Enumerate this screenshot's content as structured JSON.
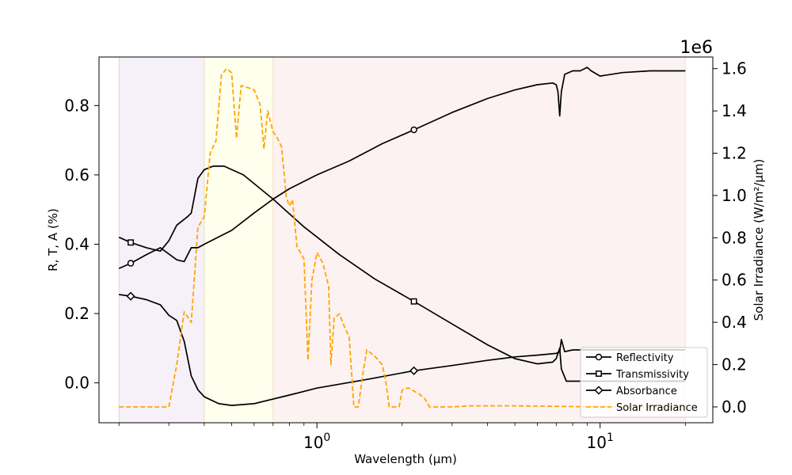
{
  "chart_data": {
    "type": "line",
    "xlabel": "Wavelength (μm)",
    "ylabel_left": "R, T, A (%)",
    "ylabel_right": "Solar Irradiance (W/m²/μm)",
    "right_axis_offset": "1e6",
    "x_scale": "log",
    "xlim": [
      0.17,
      25
    ],
    "x_major_ticks": [
      {
        "value": 1,
        "base": "10",
        "exp": "0"
      },
      {
        "value": 10,
        "base": "10",
        "exp": "1"
      }
    ],
    "ylim_left": [
      -0.115,
      0.94
    ],
    "yticks_left": [
      "0.0",
      "0.2",
      "0.4",
      "0.6",
      "0.8"
    ],
    "ylim_right": [
      -0.075,
      1.655
    ],
    "yticks_right": [
      "0.0",
      "0.2",
      "0.4",
      "0.6",
      "0.8",
      "1.0",
      "1.2",
      "1.4",
      "1.6"
    ],
    "bands": [
      {
        "x0": 0.2,
        "x1": 0.4,
        "color": "#9b59b6",
        "opacity": 0.09
      },
      {
        "x0": 0.4,
        "x1": 0.7,
        "color": "#ffff66",
        "opacity": 0.11
      },
      {
        "x0": 0.7,
        "x1": 20,
        "color": "#f08080",
        "opacity": 0.1
      }
    ],
    "legend_position": "lower-right",
    "series": [
      {
        "name": "Reflectivity",
        "axis": "left",
        "color": "#000000",
        "dash": "solid",
        "marker": "circle",
        "marker_x": [
          0.22,
          2.2
        ],
        "points": [
          [
            0.2,
            0.33
          ],
          [
            0.22,
            0.345
          ],
          [
            0.25,
            0.37
          ],
          [
            0.28,
            0.39
          ],
          [
            0.32,
            0.355
          ],
          [
            0.34,
            0.35
          ],
          [
            0.36,
            0.39
          ],
          [
            0.38,
            0.39
          ],
          [
            0.4,
            0.4
          ],
          [
            0.5,
            0.44
          ],
          [
            0.6,
            0.49
          ],
          [
            0.7,
            0.53
          ],
          [
            0.8,
            0.56
          ],
          [
            1.0,
            0.6
          ],
          [
            1.3,
            0.64
          ],
          [
            1.7,
            0.69
          ],
          [
            2.2,
            0.73
          ],
          [
            3.0,
            0.78
          ],
          [
            4.0,
            0.82
          ],
          [
            5.0,
            0.845
          ],
          [
            6.0,
            0.86
          ],
          [
            6.8,
            0.865
          ],
          [
            7.0,
            0.86
          ],
          [
            7.1,
            0.84
          ],
          [
            7.2,
            0.77
          ],
          [
            7.3,
            0.84
          ],
          [
            7.5,
            0.89
          ],
          [
            8.0,
            0.9
          ],
          [
            8.5,
            0.9
          ],
          [
            9.0,
            0.91
          ],
          [
            9.3,
            0.9
          ],
          [
            10,
            0.885
          ],
          [
            12,
            0.895
          ],
          [
            15,
            0.9
          ],
          [
            20,
            0.9
          ]
        ]
      },
      {
        "name": "Transmissivity",
        "axis": "left",
        "color": "#000000",
        "dash": "solid",
        "marker": "square",
        "marker_x": [
          0.22,
          2.2
        ],
        "points": [
          [
            0.2,
            0.42
          ],
          [
            0.22,
            0.405
          ],
          [
            0.25,
            0.39
          ],
          [
            0.28,
            0.38
          ],
          [
            0.3,
            0.41
          ],
          [
            0.32,
            0.455
          ],
          [
            0.35,
            0.48
          ],
          [
            0.36,
            0.49
          ],
          [
            0.38,
            0.59
          ],
          [
            0.4,
            0.615
          ],
          [
            0.43,
            0.625
          ],
          [
            0.47,
            0.625
          ],
          [
            0.55,
            0.6
          ],
          [
            0.7,
            0.53
          ],
          [
            0.9,
            0.45
          ],
          [
            1.2,
            0.37
          ],
          [
            1.6,
            0.3
          ],
          [
            2.2,
            0.235
          ],
          [
            3.0,
            0.17
          ],
          [
            4.0,
            0.11
          ],
          [
            5.0,
            0.07
          ],
          [
            6.0,
            0.055
          ],
          [
            6.8,
            0.06
          ],
          [
            7.0,
            0.07
          ],
          [
            7.2,
            0.1
          ],
          [
            7.3,
            0.04
          ],
          [
            7.6,
            0.005
          ],
          [
            9,
            0.005
          ],
          [
            20,
            0.005
          ]
        ]
      },
      {
        "name": "Absorbance",
        "axis": "left",
        "color": "#000000",
        "dash": "solid",
        "marker": "diamond",
        "marker_x": [
          0.22,
          2.2
        ],
        "points": [
          [
            0.2,
            0.255
          ],
          [
            0.22,
            0.25
          ],
          [
            0.25,
            0.24
          ],
          [
            0.28,
            0.225
          ],
          [
            0.3,
            0.195
          ],
          [
            0.32,
            0.18
          ],
          [
            0.34,
            0.12
          ],
          [
            0.36,
            0.02
          ],
          [
            0.38,
            -0.02
          ],
          [
            0.4,
            -0.04
          ],
          [
            0.45,
            -0.06
          ],
          [
            0.5,
            -0.065
          ],
          [
            0.6,
            -0.06
          ],
          [
            0.8,
            -0.035
          ],
          [
            1.0,
            -0.015
          ],
          [
            1.5,
            0.01
          ],
          [
            2.2,
            0.035
          ],
          [
            3.0,
            0.05
          ],
          [
            4.0,
            0.065
          ],
          [
            5.0,
            0.075
          ],
          [
            6.0,
            0.08
          ],
          [
            7.0,
            0.085
          ],
          [
            7.2,
            0.09
          ],
          [
            7.3,
            0.125
          ],
          [
            7.5,
            0.09
          ],
          [
            8.0,
            0.095
          ],
          [
            10,
            0.095
          ],
          [
            15,
            0.095
          ],
          [
            20,
            0.095
          ]
        ]
      },
      {
        "name": "Solar Irradiance",
        "axis": "right",
        "color": "#ffa500",
        "dash": "dashed",
        "marker": "none",
        "marker_x": [],
        "points": [
          [
            0.2,
            0.0
          ],
          [
            0.3,
            0.0
          ],
          [
            0.32,
            0.2
          ],
          [
            0.34,
            0.45
          ],
          [
            0.36,
            0.4
          ],
          [
            0.38,
            0.85
          ],
          [
            0.4,
            0.9
          ],
          [
            0.42,
            1.2
          ],
          [
            0.44,
            1.26
          ],
          [
            0.46,
            1.57
          ],
          [
            0.48,
            1.6
          ],
          [
            0.5,
            1.58
          ],
          [
            0.52,
            1.27
          ],
          [
            0.54,
            1.52
          ],
          [
            0.57,
            1.51
          ],
          [
            0.6,
            1.5
          ],
          [
            0.63,
            1.43
          ],
          [
            0.65,
            1.22
          ],
          [
            0.67,
            1.4
          ],
          [
            0.7,
            1.3
          ],
          [
            0.72,
            1.28
          ],
          [
            0.75,
            1.23
          ],
          [
            0.78,
            0.99
          ],
          [
            0.8,
            0.95
          ],
          [
            0.82,
            0.98
          ],
          [
            0.85,
            0.76
          ],
          [
            0.9,
            0.7
          ],
          [
            0.93,
            0.22
          ],
          [
            0.96,
            0.6
          ],
          [
            1.0,
            0.73
          ],
          [
            1.05,
            0.68
          ],
          [
            1.1,
            0.57
          ],
          [
            1.12,
            0.2
          ],
          [
            1.15,
            0.42
          ],
          [
            1.2,
            0.44
          ],
          [
            1.25,
            0.38
          ],
          [
            1.3,
            0.33
          ],
          [
            1.35,
            0.0
          ],
          [
            1.4,
            0.0
          ],
          [
            1.45,
            0.15
          ],
          [
            1.5,
            0.27
          ],
          [
            1.6,
            0.24
          ],
          [
            1.7,
            0.2
          ],
          [
            1.75,
            0.12
          ],
          [
            1.8,
            0.0
          ],
          [
            1.95,
            0.0
          ],
          [
            2.0,
            0.08
          ],
          [
            2.1,
            0.09
          ],
          [
            2.2,
            0.075
          ],
          [
            2.3,
            0.06
          ],
          [
            2.4,
            0.04
          ],
          [
            2.5,
            0.0
          ],
          [
            3.0,
            0.0
          ],
          [
            3.5,
            0.005
          ],
          [
            5,
            0.005
          ],
          [
            10,
            0.0
          ],
          [
            20,
            0.0
          ]
        ]
      }
    ]
  }
}
